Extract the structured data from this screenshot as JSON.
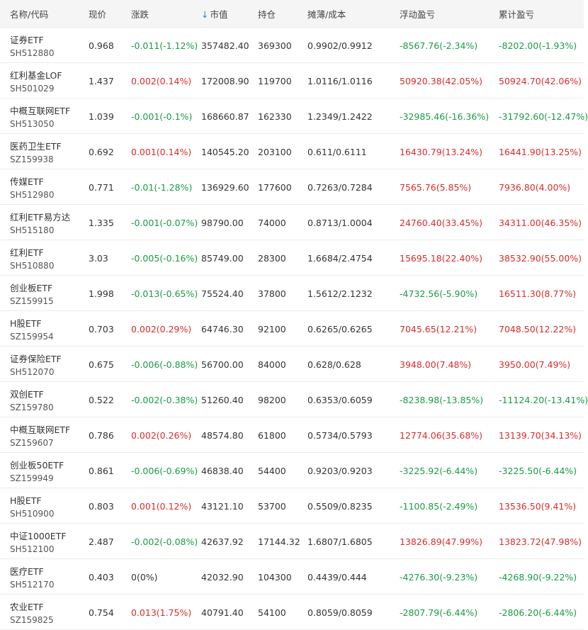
{
  "header": {
    "name_code": "名称/代码",
    "price": "现价",
    "change": "涨跌",
    "sort_icon": "↓",
    "market_value": "市值",
    "position": "持仓",
    "cost": "摊薄/成本",
    "floating_pl": "浮动盈亏",
    "cumulative_pl": "累计盈亏"
  },
  "colors": {
    "up": "#d82c2c",
    "down": "#1a9b45",
    "sort": "#2f7fd8"
  },
  "rows": [
    {
      "name": "证券ETF",
      "code": "SH512880",
      "price": "0.968",
      "change": "-0.011(-1.12%)",
      "change_dir": "down",
      "market_value": "357482.40",
      "position": "369300",
      "cost": "0.9902/0.9912",
      "float_pl": "-8567.76(-2.34%)",
      "float_dir": "down",
      "cum_pl": "-8202.00(-1.93%)",
      "cum_dir": "down"
    },
    {
      "name": "红利基金LOF",
      "code": "SH501029",
      "price": "1.437",
      "change": "0.002(0.14%)",
      "change_dir": "up",
      "market_value": "172008.90",
      "position": "119700",
      "cost": "1.0116/1.0116",
      "float_pl": "50920.38(42.05%)",
      "float_dir": "up",
      "cum_pl": "50924.70(42.06%)",
      "cum_dir": "up"
    },
    {
      "name": "中概互联网ETF",
      "code": "SH513050",
      "price": "1.039",
      "change": "-0.001(-0.1%)",
      "change_dir": "down",
      "market_value": "168660.87",
      "position": "162330",
      "cost": "1.2349/1.2422",
      "float_pl": "-32985.46(-16.36%)",
      "float_dir": "down",
      "cum_pl": "-31792.60(-12.47%)",
      "cum_dir": "down"
    },
    {
      "name": "医药卫生ETF",
      "code": "SZ159938",
      "price": "0.692",
      "change": "0.001(0.14%)",
      "change_dir": "up",
      "market_value": "140545.20",
      "position": "203100",
      "cost": "0.611/0.6111",
      "float_pl": "16430.79(13.24%)",
      "float_dir": "up",
      "cum_pl": "16441.90(13.25%)",
      "cum_dir": "up"
    },
    {
      "name": "传媒ETF",
      "code": "SH512980",
      "price": "0.771",
      "change": "-0.01(-1.28%)",
      "change_dir": "down",
      "market_value": "136929.60",
      "position": "177600",
      "cost": "0.7263/0.7284",
      "float_pl": "7565.76(5.85%)",
      "float_dir": "up",
      "cum_pl": "7936.80(4.00%)",
      "cum_dir": "up"
    },
    {
      "name": "红利ETF易方达",
      "code": "SH515180",
      "price": "1.335",
      "change": "-0.001(-0.07%)",
      "change_dir": "down",
      "market_value": "98790.00",
      "position": "74000",
      "cost": "0.8713/1.0004",
      "float_pl": "24760.40(33.45%)",
      "float_dir": "up",
      "cum_pl": "34311.00(46.35%)",
      "cum_dir": "up"
    },
    {
      "name": "红利ETF",
      "code": "SH510880",
      "price": "3.03",
      "change": "-0.005(-0.16%)",
      "change_dir": "down",
      "market_value": "85749.00",
      "position": "28300",
      "cost": "1.6684/2.4754",
      "float_pl": "15695.18(22.40%)",
      "float_dir": "up",
      "cum_pl": "38532.90(55.00%)",
      "cum_dir": "up"
    },
    {
      "name": "创业板ETF",
      "code": "SZ159915",
      "price": "1.998",
      "change": "-0.013(-0.65%)",
      "change_dir": "down",
      "market_value": "75524.40",
      "position": "37800",
      "cost": "1.5612/2.1232",
      "float_pl": "-4732.56(-5.90%)",
      "float_dir": "down",
      "cum_pl": "16511.30(8.77%)",
      "cum_dir": "up"
    },
    {
      "name": "H股ETF",
      "code": "SZ159954",
      "price": "0.703",
      "change": "0.002(0.29%)",
      "change_dir": "up",
      "market_value": "64746.30",
      "position": "92100",
      "cost": "0.6265/0.6265",
      "float_pl": "7045.65(12.21%)",
      "float_dir": "up",
      "cum_pl": "7048.50(12.22%)",
      "cum_dir": "up"
    },
    {
      "name": "证券保险ETF",
      "code": "SH512070",
      "price": "0.675",
      "change": "-0.006(-0.88%)",
      "change_dir": "down",
      "market_value": "56700.00",
      "position": "84000",
      "cost": "0.628/0.628",
      "float_pl": "3948.00(7.48%)",
      "float_dir": "up",
      "cum_pl": "3950.00(7.49%)",
      "cum_dir": "up"
    },
    {
      "name": "双创ETF",
      "code": "SZ159780",
      "price": "0.522",
      "change": "-0.002(-0.38%)",
      "change_dir": "down",
      "market_value": "51260.40",
      "position": "98200",
      "cost": "0.6353/0.6059",
      "float_pl": "-8238.98(-13.85%)",
      "float_dir": "down",
      "cum_pl": "-11124.20(-13.41%)",
      "cum_dir": "down"
    },
    {
      "name": "中概互联网ETF",
      "code": "SZ159607",
      "price": "0.786",
      "change": "0.002(0.26%)",
      "change_dir": "up",
      "market_value": "48574.80",
      "position": "61800",
      "cost": "0.5734/0.5793",
      "float_pl": "12774.06(35.68%)",
      "float_dir": "up",
      "cum_pl": "13139.70(34.13%)",
      "cum_dir": "up"
    },
    {
      "name": "创业板50ETF",
      "code": "SZ159949",
      "price": "0.861",
      "change": "-0.006(-0.69%)",
      "change_dir": "down",
      "market_value": "46838.40",
      "position": "54400",
      "cost": "0.9203/0.9203",
      "float_pl": "-3225.92(-6.44%)",
      "float_dir": "down",
      "cum_pl": "-3225.50(-6.44%)",
      "cum_dir": "down"
    },
    {
      "name": "H股ETF",
      "code": "SH510900",
      "price": "0.803",
      "change": "0.001(0.12%)",
      "change_dir": "up",
      "market_value": "43121.10",
      "position": "53700",
      "cost": "0.5509/0.8235",
      "float_pl": "-1100.85(-2.49%)",
      "float_dir": "down",
      "cum_pl": "13536.50(9.41%)",
      "cum_dir": "up"
    },
    {
      "name": "中证1000ETF",
      "code": "SH512100",
      "price": "2.487",
      "change": "-0.002(-0.08%)",
      "change_dir": "down",
      "market_value": "42637.92",
      "position": "17144.32",
      "cost": "1.6807/1.6805",
      "float_pl": "13826.89(47.99%)",
      "float_dir": "up",
      "cum_pl": "13823.72(47.98%)",
      "cum_dir": "up"
    },
    {
      "name": "医疗ETF",
      "code": "SH512170",
      "price": "0.403",
      "change": "0(0%)",
      "change_dir": "flat",
      "market_value": "42032.90",
      "position": "104300",
      "cost": "0.4439/0.444",
      "float_pl": "-4276.30(-9.23%)",
      "float_dir": "down",
      "cum_pl": "-4268.90(-9.22%)",
      "cum_dir": "down"
    },
    {
      "name": "农业ETF",
      "code": "SZ159825",
      "price": "0.754",
      "change": "0.013(1.75%)",
      "change_dir": "up",
      "market_value": "40791.40",
      "position": "54100",
      "cost": "0.8059/0.8059",
      "float_pl": "-2807.79(-6.44%)",
      "float_dir": "down",
      "cum_pl": "-2806.20(-6.44%)",
      "cum_dir": "down"
    }
  ]
}
